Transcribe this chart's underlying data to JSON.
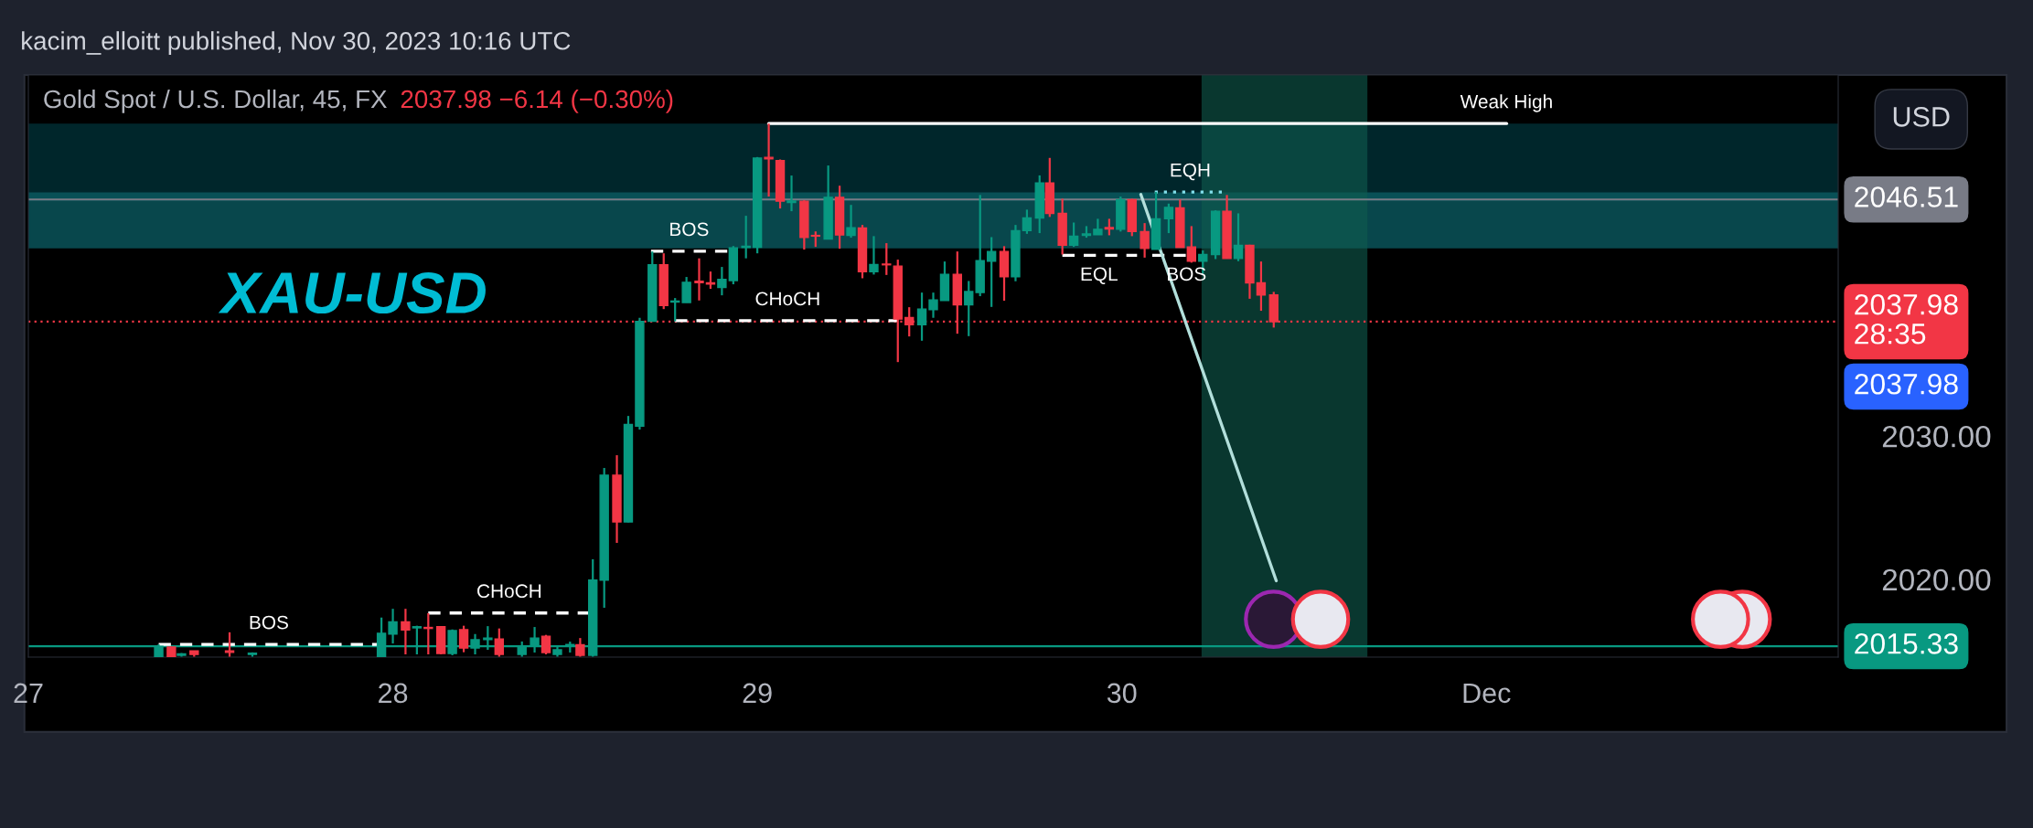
{
  "chart_data": {
    "type": "candlestick",
    "title": "Gold Spot / U.S. Dollar, 45, FX",
    "subtitle": "2037.98 −6.14 (−0.30%)",
    "x": [
      "2023-11-27T08:35",
      "2023-11-27T09:25",
      "2023-11-27T10:05",
      "2023-11-27T10:55",
      "2023-11-27T13:15",
      "2023-11-27T14:45",
      "2023-11-27T23:15",
      "2023-11-28T00:00",
      "2023-11-28T00:50",
      "2023-11-28T01:35",
      "2023-11-28T02:20",
      "2023-11-28T03:10",
      "2023-11-28T03:55",
      "2023-11-28T04:40",
      "2023-11-28T05:25",
      "2023-11-28T06:15",
      "2023-11-28T07:00",
      "2023-11-28T08:30",
      "2023-11-28T09:20",
      "2023-11-28T10:05",
      "2023-11-28T10:50",
      "2023-11-28T11:40",
      "2023-11-28T12:20",
      "2023-11-28T13:10",
      "2023-11-28T13:55",
      "2023-11-28T14:45",
      "2023-11-28T15:30",
      "2023-11-28T16:15",
      "2023-11-28T17:05",
      "2023-11-28T17:50",
      "2023-11-28T18:35",
      "2023-11-28T19:20",
      "2023-11-28T20:10",
      "2023-11-28T20:55",
      "2023-11-28T21:40",
      "2023-11-28T22:25",
      "2023-11-28T23:15",
      "2023-11-29T00:00",
      "2023-11-29T00:45",
      "2023-11-29T01:30",
      "2023-11-29T02:15",
      "2023-11-29T03:05",
      "2023-11-29T03:50",
      "2023-11-29T04:40",
      "2023-11-29T05:25",
      "2023-11-29T06:10",
      "2023-11-29T06:55",
      "2023-11-29T07:40",
      "2023-11-29T08:30",
      "2023-11-29T09:15",
      "2023-11-29T10:00",
      "2023-11-29T10:50",
      "2023-11-29T11:35",
      "2023-11-29T12:20",
      "2023-11-29T13:10",
      "2023-11-29T13:55",
      "2023-11-29T14:40",
      "2023-11-29T15:25",
      "2023-11-29T16:15",
      "2023-11-29T17:00",
      "2023-11-29T17:45",
      "2023-11-29T18:35",
      "2023-11-29T19:15",
      "2023-11-29T20:05",
      "2023-11-29T20:50",
      "2023-11-29T21:40",
      "2023-11-29T22:25",
      "2023-11-29T23:10",
      "2023-11-29T23:55",
      "2023-11-30T00:40",
      "2023-11-30T01:30",
      "2023-11-30T02:15",
      "2023-11-30T03:05",
      "2023-11-30T03:50",
      "2023-11-30T04:35",
      "2023-11-30T05:20",
      "2023-11-30T06:10",
      "2023-11-30T06:55",
      "2023-11-30T07:40",
      "2023-11-30T08:25",
      "2023-11-30T09:10",
      "2023-11-30T10:00"
    ],
    "ohlc": [
      [
        2014.6,
        2015.46,
        2014.6,
        2015.33
      ],
      [
        2015.27,
        2015.3,
        2014.6,
        2014.6
      ],
      [
        2014.7,
        2014.85,
        2014.6,
        2014.8
      ],
      [
        2015.0,
        2015.0,
        2014.6,
        2014.75
      ],
      [
        2015.0,
        2016.3,
        2014.6,
        2014.9
      ],
      [
        2014.75,
        2014.9,
        2014.6,
        2014.85
      ],
      [
        2014.6,
        2017.33,
        2014.6,
        2016.23
      ],
      [
        2016.18,
        2017.94,
        2015.52,
        2017.03
      ],
      [
        2017.03,
        2017.94,
        2014.76,
        2016.46
      ],
      [
        2016.61,
        2016.76,
        2014.76,
        2016.69
      ],
      [
        2016.64,
        2017.63,
        2014.76,
        2016.57
      ],
      [
        2016.69,
        2016.73,
        2014.76,
        2014.82
      ],
      [
        2014.82,
        2016.5,
        2014.7,
        2016.42
      ],
      [
        2016.48,
        2016.76,
        2014.91,
        2015.2
      ],
      [
        2015.2,
        2016.18,
        2014.76,
        2015.78
      ],
      [
        2015.8,
        2016.73,
        2015.08,
        2015.9
      ],
      [
        2015.84,
        2016.57,
        2014.6,
        2014.76
      ],
      [
        2014.76,
        2015.66,
        2014.6,
        2015.33
      ],
      [
        2015.33,
        2016.67,
        2014.89,
        2015.9
      ],
      [
        2016.03,
        2016.12,
        2014.76,
        2014.89
      ],
      [
        2014.76,
        2015.37,
        2014.6,
        2015.08
      ],
      [
        2015.4,
        2015.65,
        2014.89,
        2015.45
      ],
      [
        2015.43,
        2015.9,
        2014.6,
        2014.7
      ],
      [
        2014.7,
        2021.4,
        2014.6,
        2019.94
      ],
      [
        2019.94,
        2027.77,
        2018.01,
        2027.26
      ],
      [
        2027.26,
        2028.66,
        2022.54,
        2024.0
      ],
      [
        2024.0,
        2031.4,
        2023.97,
        2030.8
      ],
      [
        2030.68,
        2038.25,
        2030.45,
        2038.0
      ],
      [
        2038.0,
        2042.88,
        2038.0,
        2041.96
      ],
      [
        2041.96,
        2042.75,
        2038.86,
        2039.1
      ],
      [
        2039.35,
        2039.63,
        2038.0,
        2039.42
      ],
      [
        2039.31,
        2041.1,
        2039.31,
        2040.73
      ],
      [
        2040.8,
        2042.4,
        2039.46,
        2040.7
      ],
      [
        2040.7,
        2041.48,
        2040.27,
        2040.6
      ],
      [
        2040.37,
        2041.8,
        2039.82,
        2040.93
      ],
      [
        2040.85,
        2043.26,
        2040.59,
        2043.14
      ],
      [
        2043.15,
        2045.37,
        2042.4,
        2043.25
      ],
      [
        2043.18,
        2049.47,
        2042.75,
        2049.4
      ],
      [
        2049.45,
        2051.81,
        2046.71,
        2049.35
      ],
      [
        2049.23,
        2049.3,
        2045.88,
        2046.39
      ],
      [
        2046.3,
        2048.18,
        2045.69,
        2046.4
      ],
      [
        2046.39,
        2046.45,
        2043.01,
        2043.86
      ],
      [
        2044.0,
        2044.28,
        2043.2,
        2043.95
      ],
      [
        2043.74,
        2048.88,
        2043.74,
        2046.66
      ],
      [
        2046.66,
        2047.47,
        2043.07,
        2044.03
      ],
      [
        2044.01,
        2046.13,
        2043.84,
        2044.54
      ],
      [
        2044.52,
        2044.73,
        2041.01,
        2041.46
      ],
      [
        2041.46,
        2043.95,
        2041.27,
        2041.97
      ],
      [
        2042.0,
        2043.46,
        2041.24,
        2041.95
      ],
      [
        2041.86,
        2042.31,
        2035.16,
        2038.16
      ],
      [
        2038.27,
        2038.99,
        2036.95,
        2037.76
      ],
      [
        2037.76,
        2040.01,
        2036.65,
        2038.86
      ],
      [
        2038.82,
        2040.01,
        2038.25,
        2039.5
      ],
      [
        2039.46,
        2042.18,
        2039.46,
        2041.29
      ],
      [
        2041.29,
        2042.88,
        2037.14,
        2039.16
      ],
      [
        2039.16,
        2040.82,
        2036.97,
        2040.08
      ],
      [
        2040.01,
        2046.82,
        2039.76,
        2042.24
      ],
      [
        2042.2,
        2043.88,
        2039.01,
        2042.88
      ],
      [
        2042.88,
        2043.25,
        2039.44,
        2041.12
      ],
      [
        2041.12,
        2044.73,
        2040.8,
        2044.33
      ],
      [
        2044.33,
        2045.8,
        2044.11,
        2045.22
      ],
      [
        2045.22,
        2048.19,
        2044.16,
        2047.66
      ],
      [
        2047.66,
        2049.41,
        2045.29,
        2045.54
      ],
      [
        2045.54,
        2046.56,
        2042.67,
        2043.31
      ],
      [
        2043.31,
        2044.9,
        2043.2,
        2043.95
      ],
      [
        2044.0,
        2044.65,
        2043.84,
        2044.1
      ],
      [
        2044.05,
        2045.16,
        2044.05,
        2044.43
      ],
      [
        2044.55,
        2045.16,
        2044.01,
        2044.45
      ],
      [
        2044.43,
        2046.71,
        2044.27,
        2046.5
      ],
      [
        2046.5,
        2046.56,
        2043.95,
        2044.27
      ],
      [
        2044.27,
        2044.86,
        2042.45,
        2043.09
      ],
      [
        2043.03,
        2047.03,
        2043.03,
        2045.16
      ],
      [
        2045.16,
        2046.22,
        2044.16,
        2045.96
      ],
      [
        2045.92,
        2046.5,
        2043.16,
        2043.16
      ],
      [
        2043.2,
        2044.65,
        2042.1,
        2042.2
      ],
      [
        2042.2,
        2042.95,
        2041.33,
        2042.67
      ],
      [
        2042.67,
        2045.75,
        2042.35,
        2045.69
      ],
      [
        2045.69,
        2046.82,
        2042.39,
        2042.39
      ],
      [
        2042.39,
        2045.54,
        2042.2,
        2043.31
      ],
      [
        2043.31,
        2043.35,
        2039.58,
        2040.69
      ],
      [
        2040.69,
        2042.18,
        2038.74,
        2039.84
      ],
      [
        2039.84,
        2040.06,
        2037.57,
        2037.98
      ]
    ],
    "colors": [
      "#089981",
      "#f23645",
      "#089981",
      "#f23645",
      "#f23645",
      "#089981",
      "#089981",
      "#089981",
      "#f23645",
      "#089981",
      "#f23645",
      "#f23645",
      "#089981",
      "#f23645",
      "#089981",
      "#089981",
      "#f23645",
      "#089981",
      "#089981",
      "#f23645",
      "#089981",
      "#089981",
      "#f23645",
      "#089981",
      "#089981",
      "#f23645",
      "#089981",
      "#089981",
      "#089981",
      "#f23645",
      "#089981",
      "#089981",
      "#f23645",
      "#f23645",
      "#089981",
      "#089981",
      "#089981",
      "#089981",
      "#f23645",
      "#f23645",
      "#089981",
      "#f23645",
      "#f23645",
      "#089981",
      "#f23645",
      "#089981",
      "#f23645",
      "#089981",
      "#f23645",
      "#f23645",
      "#f23645",
      "#089981",
      "#089981",
      "#089981",
      "#f23645",
      "#089981",
      "#089981",
      "#089981",
      "#f23645",
      "#089981",
      "#089981",
      "#089981",
      "#f23645",
      "#f23645",
      "#089981",
      "#089981",
      "#089981",
      "#f23645",
      "#089981",
      "#f23645",
      "#f23645",
      "#089981",
      "#089981",
      "#f23645",
      "#f23645",
      "#089981",
      "#089981",
      "#f23645",
      "#089981",
      "#f23645",
      "#f23645",
      "#f23645"
    ],
    "xlim": [
      "2023-11-27T00:00",
      "2023-12-01T23:10"
    ],
    "xticks": [
      {
        "value": "2023-11-27",
        "label": "27"
      },
      {
        "value": "2023-11-28",
        "label": "28"
      },
      {
        "value": "2023-11-29",
        "label": "29"
      },
      {
        "value": "2023-11-30",
        "label": "30"
      },
      {
        "value": "2023-12-01",
        "label": "Dec"
      }
    ],
    "ylim": [
      2014.57,
      2055.2
    ],
    "yticks": [
      {
        "value": 2020,
        "label": "2020.00"
      },
      {
        "value": 2030,
        "label": "2030.00"
      }
    ],
    "series": [
      {
        "type": "line",
        "color": "#ffffff",
        "line_style": "dashed",
        "x": [
          "2023-11-27T08:35",
          "2023-11-27T23:10"
        ],
        "values": [
          2015.46,
          2015.46
        ]
      },
      {
        "type": "line",
        "color": "#ffffff",
        "line_style": "dashed",
        "x": [
          "2023-11-28T02:20",
          "2023-11-28T12:55"
        ],
        "values": [
          2017.65,
          2017.65
        ]
      },
      {
        "type": "line",
        "color": "#ffffff",
        "line_style": "dashed",
        "x": [
          "2023-11-28T17:00",
          "2023-11-28T22:05"
        ],
        "values": [
          2042.9,
          2042.9
        ]
      },
      {
        "type": "line",
        "color": "#ffffff",
        "line_style": "dashed",
        "x": [
          "2023-11-28T18:35",
          "2023-11-29T09:15"
        ],
        "values": [
          2038.05,
          2038.05
        ]
      },
      {
        "type": "line",
        "color": "#ffffff",
        "line_style": "dashed",
        "x": [
          "2023-11-29T20:05",
          "2023-11-30T01:00"
        ],
        "values": [
          2042.61,
          2042.61
        ]
      },
      {
        "type": "line",
        "color": "#ffffff",
        "line_style": "dashed",
        "x": [
          "2023-11-30T02:00",
          "2023-11-30T04:15"
        ],
        "values": [
          2042.61,
          2042.61
        ]
      },
      {
        "type": "line",
        "color": "#80deea",
        "line_style": "dotted",
        "x": [
          "2023-11-30T02:10",
          "2023-11-30T06:50"
        ],
        "values": [
          2047.03,
          2047.03
        ]
      },
      {
        "type": "line",
        "color": "#ffffff",
        "line_style": "solid",
        "x": [
          "2023-11-29T00:45",
          "2023-12-01T01:20"
        ],
        "values": [
          2051.81,
          2051.81
        ]
      },
      {
        "type": "line",
        "color": "#b2dfdb",
        "line_style": "solid",
        "x": [
          "2023-11-30T10:10",
          "2023-11-30T01:15"
        ],
        "values": [
          2019.9,
          2046.86
        ]
      }
    ],
    "bands": [
      {
        "axis": "y",
        "from": 2046.4,
        "to": 2051.8,
        "color": "#00333a"
      },
      {
        "axis": "y",
        "from": 2043.1,
        "to": 2047.0,
        "color": "#0b5f66"
      },
      {
        "axis": "x",
        "from": "2023-11-30T05:15",
        "to": "2023-11-30T16:10",
        "color": "#0f5c4f"
      }
    ],
    "ref_lines": [
      {
        "axis": "y",
        "value": 2015.33,
        "label": "2015.33",
        "color": "#089981",
        "line_style": "solid"
      },
      {
        "axis": "y",
        "value": 2037.98,
        "label": "2037.98\n28:35",
        "color": "#f23645",
        "line_style": "dotted"
      },
      {
        "axis": "y",
        "value": 2046.51,
        "label": "2046.51",
        "color": "#787b86",
        "line_style": "solid"
      }
    ],
    "annotations": [
      "kacim_elloitt published, Nov 30, 2023 10:16 UTC",
      "XAU-USD",
      "USD",
      "2037.98",
      {
        "text": "BOS",
        "x": "2023-11-27T15:50",
        "y": 2015.46
      },
      {
        "text": "CHoCH",
        "x": "2023-11-28T07:40",
        "y": 2017.65
      },
      {
        "text": "BOS",
        "x": "2023-11-28T19:30",
        "y": 2042.9
      },
      {
        "text": "CHoCH",
        "x": "2023-11-29T02:00",
        "y": 2038.05
      },
      {
        "text": "EQL",
        "x": "2023-11-29T22:30",
        "y": 2042.61
      },
      {
        "text": "BOS",
        "x": "2023-11-30T04:15",
        "y": 2042.61
      },
      {
        "text": "EQH",
        "x": "2023-11-30T04:30",
        "y": 2047.03
      },
      {
        "text": "Weak High",
        "x": "2023-12-01T01:20",
        "y": 2051.81
      }
    ]
  }
}
